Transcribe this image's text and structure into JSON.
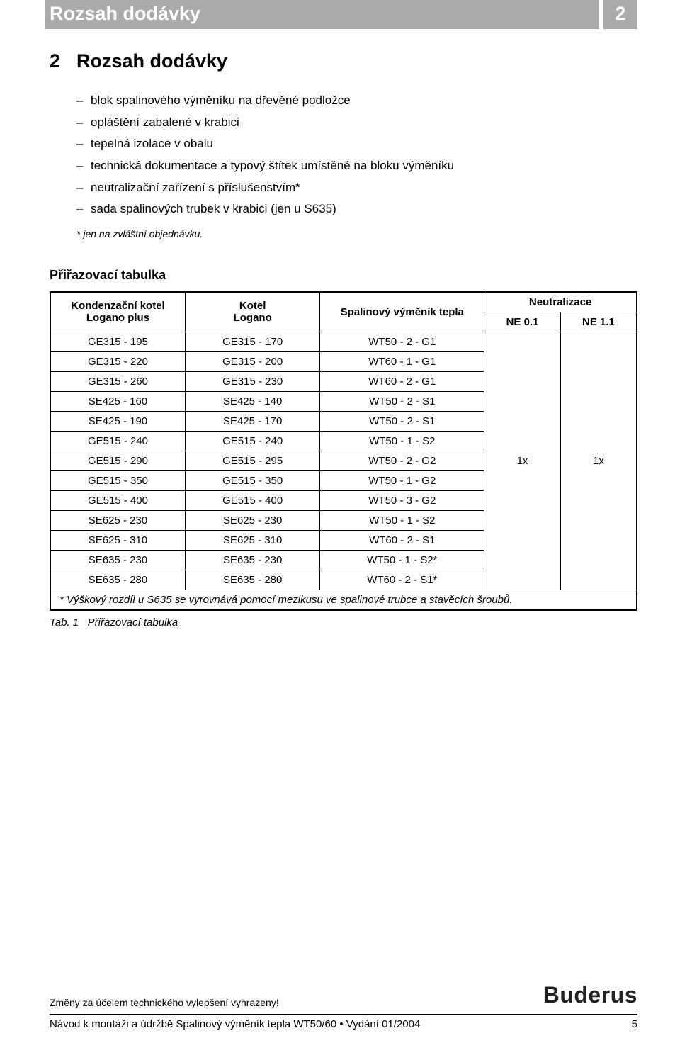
{
  "header": {
    "title": "Rozsah dodávky",
    "page_number": "2"
  },
  "section": {
    "number": "2",
    "title": "Rozsah dodávky"
  },
  "bullets": [
    "blok spalinového výměníku na dřevěné podložce",
    "opláštění zabalené v krabici",
    "tepelná izolace v obalu",
    "technická dokumentace a typový štítek umístěné na bloku výměníku",
    "neutralizační zařízení s příslušenstvím*",
    "sada spalinových trubek v krabici (jen u S635)"
  ],
  "footnote": "* jen na zvláštní objednávku.",
  "table_heading": "Přiřazovací tabulka",
  "table": {
    "headers": {
      "col1_l1": "Kondenzační kotel",
      "col1_l2": "Logano plus",
      "col2_l1": "Kotel",
      "col2_l2": "Logano",
      "col3": "Spalinový výměník tepla",
      "col4": "Neutralizace",
      "col4a": "NE 0.1",
      "col4b": "NE 1.1"
    },
    "rows": [
      [
        "GE315 - 195",
        "GE315 - 170",
        "WT50 - 2 - G1"
      ],
      [
        "GE315 - 220",
        "GE315 - 200",
        "WT60 - 1 - G1"
      ],
      [
        "GE315 - 260",
        "GE315 - 230",
        "WT60 - 2 - G1"
      ],
      [
        "SE425 - 160",
        "SE425 - 140",
        "WT50 - 2 - S1"
      ],
      [
        "SE425 - 190",
        "SE425 - 170",
        "WT50 - 2 - S1"
      ],
      [
        "GE515 - 240",
        "GE515 - 240",
        "WT50 - 1 - S2"
      ],
      [
        "GE515 - 290",
        "GE515 - 295",
        "WT50 - 2 - G2"
      ],
      [
        "GE515 - 350",
        "GE515 - 350",
        "WT50 - 1 - G2"
      ],
      [
        "GE515 - 400",
        "GE515 - 400",
        "WT50 - 3 - G2"
      ],
      [
        "SE625 - 230",
        "SE625 - 230",
        "WT50 - 1 - S2"
      ],
      [
        "SE625 - 310",
        "SE625 - 310",
        "WT60 - 2 - S1"
      ],
      [
        "SE635 - 230",
        "SE635 - 230",
        "WT50 - 1 - S2*"
      ],
      [
        "SE635 - 280",
        "SE635 - 280",
        "WT60 - 2 - S1*"
      ]
    ],
    "neutral_a": "1x",
    "neutral_b": "1x",
    "footnote_row": "*   Výškový rozdíl u S635 se vyrovnává pomocí mezikusu ve spalinové trubce a stavěcích šroubů."
  },
  "table_caption": {
    "label": "Tab. 1",
    "text": "Přiřazovací tabulka"
  },
  "footer": {
    "disclaimer": "Změny za účelem technického vylepšení vyhrazeny!",
    "brand": "Buderus",
    "doc_line": "Návod k montáži a údržbě Spalinový výměník tepla WT50/60 • Vydání 01/2004",
    "page": "5"
  },
  "colors": {
    "header_bg": "#a9aaac",
    "header_fg": "#ffffff",
    "text": "#000000",
    "border": "#000000"
  },
  "fonts": {
    "family": "Arial, Helvetica, sans-serif",
    "header_title_size_pt": 20,
    "section_heading_size_pt": 20,
    "body_size_pt": 13,
    "table_size_pt": 11,
    "footnote_size_pt": 10,
    "brand_size_pt": 24
  }
}
